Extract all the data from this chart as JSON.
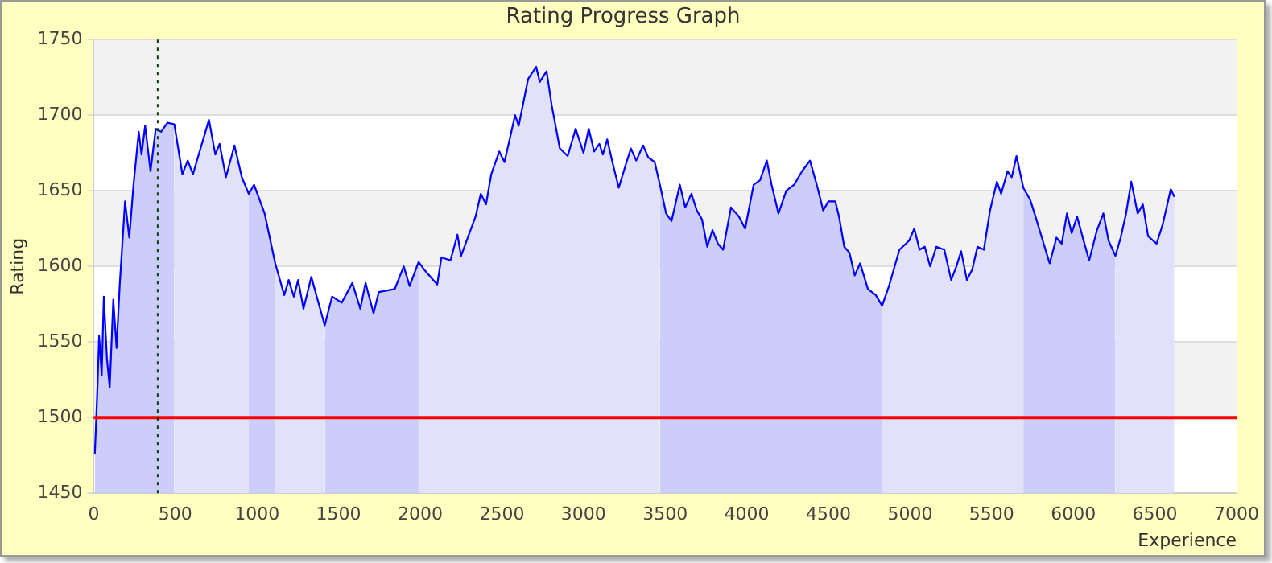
{
  "chart_data": {
    "type": "line",
    "title": "Rating Progress Graph",
    "xlabel": "Experience",
    "ylabel": "Rating",
    "xlim": [
      0,
      7000
    ],
    "xticks": [
      0,
      500,
      1000,
      1500,
      2000,
      2500,
      3000,
      3500,
      4000,
      4500,
      5000,
      5500,
      6000,
      6500,
      7000
    ],
    "ylim": [
      1450,
      1750
    ],
    "yticks": [
      1450,
      1500,
      1550,
      1600,
      1650,
      1700,
      1750
    ],
    "grid": "y",
    "legend": false,
    "marker": "none",
    "line_style": "solid",
    "series": [
      {
        "color": "#0000ff",
        "x": [
          7,
          23,
          33,
          49,
          62,
          81,
          98,
          120,
          140,
          159,
          192,
          218,
          244,
          276,
          293,
          315,
          348,
          380,
          413,
          452,
          494,
          543,
          576,
          608,
          706,
          745,
          771,
          810,
          862,
          907,
          950,
          982,
          1047,
          1112,
          1167,
          1194,
          1226,
          1252,
          1285,
          1333,
          1415,
          1460,
          1519,
          1584,
          1633,
          1665,
          1714,
          1746,
          1844,
          1899,
          1935,
          1990,
          2023,
          2104,
          2130,
          2185,
          2228,
          2250,
          2339,
          2371,
          2403,
          2435,
          2484,
          2516,
          2581,
          2603,
          2661,
          2710,
          2732,
          2774,
          2806,
          2855,
          2903,
          2952,
          3000,
          3032,
          3065,
          3097,
          3119,
          3145,
          3177,
          3216,
          3258,
          3290,
          3323,
          3365,
          3397,
          3436,
          3468,
          3506,
          3539,
          3590,
          3623,
          3661,
          3694,
          3726,
          3758,
          3790,
          3823,
          3855,
          3903,
          3952,
          3990,
          4042,
          4081,
          4123,
          4152,
          4194,
          4242,
          4290,
          4339,
          4387,
          4429,
          4468,
          4500,
          4542,
          4565,
          4597,
          4629,
          4661,
          4694,
          4742,
          4790,
          4829,
          4871,
          4935,
          4994,
          5026,
          5058,
          5090,
          5123,
          5161,
          5210,
          5252,
          5284,
          5313,
          5348,
          5381,
          5413,
          5452,
          5490,
          5532,
          5558,
          5597,
          5623,
          5652,
          5694,
          5736,
          5774,
          5813,
          5855,
          5897,
          5929,
          5961,
          5990,
          6023,
          6058,
          6097,
          6145,
          6184,
          6216,
          6258,
          6290,
          6323,
          6355,
          6394,
          6426,
          6458,
          6510,
          6548,
          6597,
          6619
        ],
        "values": [
          1476,
          1520,
          1554,
          1528,
          1580,
          1539,
          1520,
          1578,
          1546,
          1587,
          1643,
          1619,
          1654,
          1689,
          1674,
          1693,
          1663,
          1691,
          1689,
          1695,
          1694,
          1661,
          1670,
          1661,
          1697,
          1674,
          1681,
          1659,
          1680,
          1659,
          1648,
          1654,
          1635,
          1602,
          1581,
          1591,
          1580,
          1591,
          1572,
          1593,
          1561,
          1580,
          1576,
          1589,
          1572,
          1589,
          1569,
          1583,
          1585,
          1600,
          1587,
          1603,
          1598,
          1588,
          1606,
          1604,
          1621,
          1607,
          1633,
          1648,
          1641,
          1661,
          1676,
          1669,
          1700,
          1693,
          1724,
          1732,
          1722,
          1729,
          1706,
          1678,
          1673,
          1691,
          1675,
          1691,
          1676,
          1681,
          1674,
          1684,
          1669,
          1652,
          1667,
          1678,
          1670,
          1680,
          1672,
          1669,
          1654,
          1635,
          1630,
          1654,
          1639,
          1648,
          1637,
          1631,
          1613,
          1624,
          1615,
          1611,
          1639,
          1633,
          1625,
          1654,
          1657,
          1670,
          1654,
          1635,
          1650,
          1654,
          1663,
          1670,
          1654,
          1637,
          1643,
          1643,
          1633,
          1613,
          1609,
          1594,
          1602,
          1585,
          1581,
          1574,
          1587,
          1611,
          1617,
          1625,
          1611,
          1613,
          1600,
          1613,
          1611,
          1591,
          1600,
          1610,
          1591,
          1598,
          1613,
          1611,
          1637,
          1656,
          1648,
          1663,
          1659,
          1673,
          1652,
          1644,
          1631,
          1617,
          1602,
          1619,
          1615,
          1635,
          1622,
          1633,
          1619,
          1604,
          1624,
          1635,
          1617,
          1607,
          1619,
          1635,
          1656,
          1635,
          1641,
          1620,
          1615,
          1628,
          1651,
          1646
        ]
      },
      {
        "type": "area",
        "color": "#cdcdf9",
        "x": [
          7,
          23,
          33,
          49,
          62,
          81,
          98,
          120,
          140,
          159,
          192,
          218,
          244,
          276,
          293,
          315,
          348,
          380,
          413,
          452,
          494
        ],
        "values": [
          1476,
          1520,
          1554,
          1528,
          1580,
          1539,
          1520,
          1578,
          1546,
          1587,
          1643,
          1619,
          1654,
          1689,
          1674,
          1693,
          1663,
          1691,
          1689,
          1695,
          1694
        ]
      },
      {
        "type": "area",
        "color": "#e1e1fa",
        "x": [
          494,
          543,
          576,
          608,
          706,
          745,
          771,
          810,
          862,
          907,
          950
        ],
        "values": [
          1694,
          1661,
          1670,
          1661,
          1697,
          1674,
          1681,
          1659,
          1680,
          1659,
          1648
        ]
      },
      {
        "type": "area",
        "color": "#cdcdf9",
        "x": [
          950,
          982,
          1047,
          1112
        ],
        "values": [
          1648,
          1654,
          1635,
          1602
        ]
      },
      {
        "type": "area",
        "color": "#e1e1fa",
        "x": [
          1112,
          1167,
          1194,
          1226,
          1252,
          1285,
          1333,
          1415
        ],
        "values": [
          1602,
          1581,
          1591,
          1580,
          1591,
          1572,
          1593,
          1561
        ]
      },
      {
        "type": "area",
        "color": "#cdcdf9",
        "x": [
          1415,
          1460,
          1519,
          1584,
          1633,
          1665,
          1714,
          1746,
          1844,
          1899,
          1935,
          1990
        ],
        "values": [
          1561,
          1580,
          1576,
          1589,
          1572,
          1589,
          1569,
          1583,
          1585,
          1600,
          1587,
          1603
        ]
      },
      {
        "type": "area",
        "color": "#e1e1fa",
        "x": [
          1990,
          2023,
          2104,
          2130,
          2185,
          2228,
          2250,
          2339,
          2371,
          2403,
          2435,
          2484,
          2516,
          2581,
          2603,
          2661,
          2710,
          2732,
          2774,
          2806,
          2855,
          2903,
          2952,
          3000,
          3032,
          3065,
          3097,
          3119,
          3145,
          3177,
          3216,
          3258,
          3290,
          3323,
          3365,
          3397,
          3436,
          3468
        ],
        "values": [
          1603,
          1598,
          1588,
          1606,
          1604,
          1621,
          1607,
          1633,
          1648,
          1641,
          1661,
          1676,
          1669,
          1700,
          1693,
          1724,
          1732,
          1722,
          1729,
          1706,
          1678,
          1673,
          1691,
          1675,
          1691,
          1676,
          1681,
          1674,
          1684,
          1669,
          1652,
          1667,
          1678,
          1670,
          1680,
          1672,
          1669,
          1654
        ]
      },
      {
        "type": "area",
        "color": "#cdcdf9",
        "x": [
          3468,
          3506,
          3539,
          3590,
          3623,
          3661,
          3694,
          3726,
          3758,
          3790,
          3823,
          3855,
          3903,
          3952,
          3990,
          4042,
          4081,
          4123,
          4152,
          4194,
          4242,
          4290,
          4339,
          4387,
          4429,
          4468,
          4500,
          4542,
          4565,
          4597,
          4629,
          4661,
          4694,
          4742,
          4790,
          4829
        ],
        "values": [
          1654,
          1635,
          1630,
          1654,
          1639,
          1648,
          1637,
          1631,
          1613,
          1624,
          1615,
          1611,
          1639,
          1633,
          1625,
          1654,
          1657,
          1670,
          1654,
          1635,
          1650,
          1654,
          1663,
          1670,
          1654,
          1637,
          1643,
          1643,
          1633,
          1613,
          1609,
          1594,
          1602,
          1585,
          1581,
          1574
        ]
      },
      {
        "type": "area",
        "color": "#e1e1fa",
        "x": [
          4829,
          4871,
          4935,
          4994,
          5026,
          5058,
          5090,
          5123,
          5161,
          5210,
          5252,
          5284,
          5313,
          5348,
          5381,
          5413,
          5452,
          5490,
          5532,
          5558,
          5597,
          5623,
          5652,
          5694
        ],
        "values": [
          1574,
          1587,
          1611,
          1617,
          1625,
          1611,
          1613,
          1600,
          1613,
          1611,
          1591,
          1600,
          1610,
          1591,
          1598,
          1613,
          1611,
          1637,
          1656,
          1648,
          1663,
          1659,
          1673,
          1652
        ]
      },
      {
        "type": "area",
        "color": "#cdcdf9",
        "x": [
          5694,
          5736,
          5774,
          5813,
          5855,
          5897,
          5929,
          5961,
          5990,
          6023,
          6058,
          6097,
          6145,
          6184,
          6216,
          6258
        ],
        "values": [
          1652,
          1644,
          1631,
          1617,
          1602,
          1619,
          1615,
          1635,
          1622,
          1633,
          1619,
          1604,
          1624,
          1635,
          1617,
          1607
        ]
      },
      {
        "type": "area",
        "color": "#e1e1fa",
        "x": [
          6258,
          6290,
          6323,
          6355,
          6394,
          6426,
          6458,
          6510,
          6548,
          6597,
          6619
        ],
        "values": [
          1607,
          1619,
          1635,
          1656,
          1635,
          1641,
          1620,
          1615,
          1628,
          1651,
          1646
        ]
      }
    ],
    "ref_lines": [
      {
        "axis": "y",
        "value": 1500,
        "color": "#ff0000",
        "line_style": "solid"
      },
      {
        "axis": "x",
        "value": 392,
        "color": "#004000",
        "line_style": "dotted"
      }
    ]
  }
}
